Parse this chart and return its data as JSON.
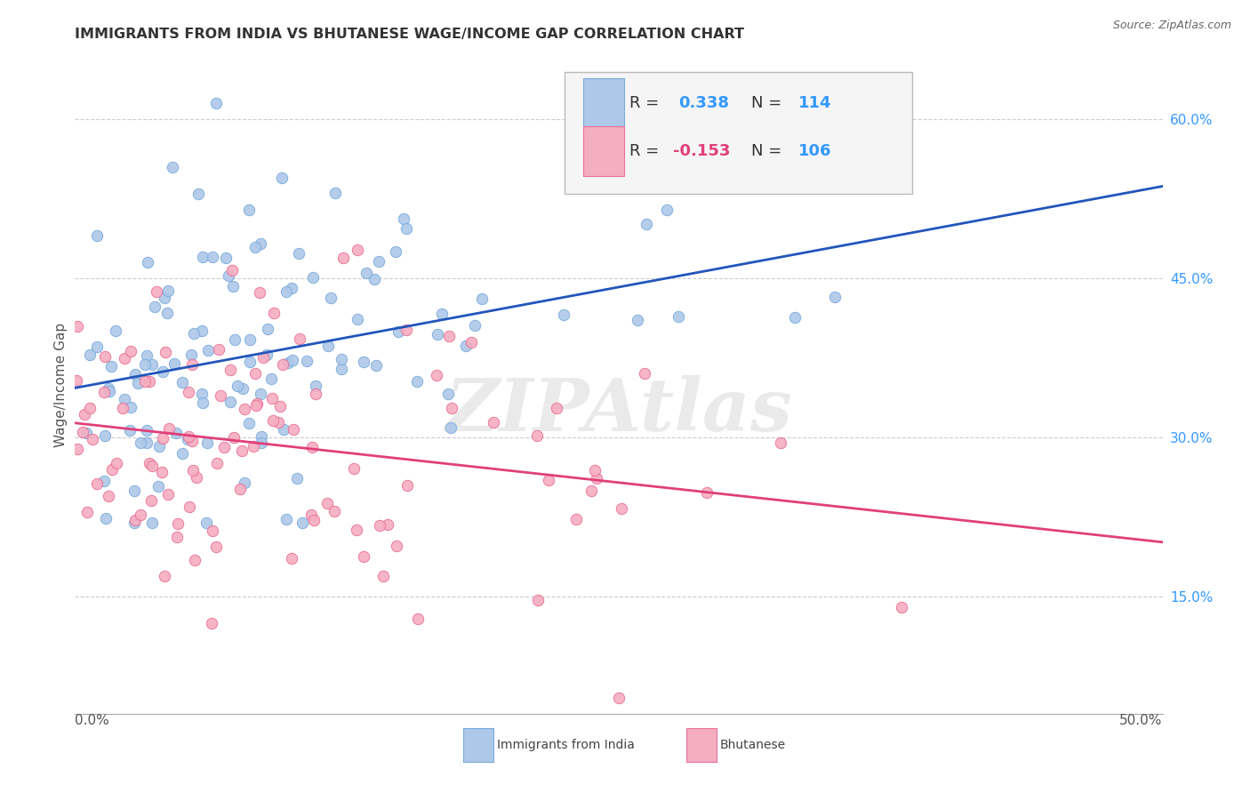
{
  "title": "IMMIGRANTS FROM INDIA VS BHUTANESE WAGE/INCOME GAP CORRELATION CHART",
  "source": "Source: ZipAtlas.com",
  "ylabel": "Wage/Income Gap",
  "india_color": "#adc8e8",
  "india_edge": "#7aabdb",
  "bhutan_color": "#f5adc0",
  "bhutan_edge": "#e87098",
  "india_line_color": "#2255bb",
  "bhutan_line_color": "#e0407a",
  "watermark": "ZIPAtlas",
  "background_color": "#ffffff",
  "grid_color": "#cccccc",
  "xmin": 0.0,
  "xmax": 0.5,
  "ymin": 0.04,
  "ymax": 0.66
}
